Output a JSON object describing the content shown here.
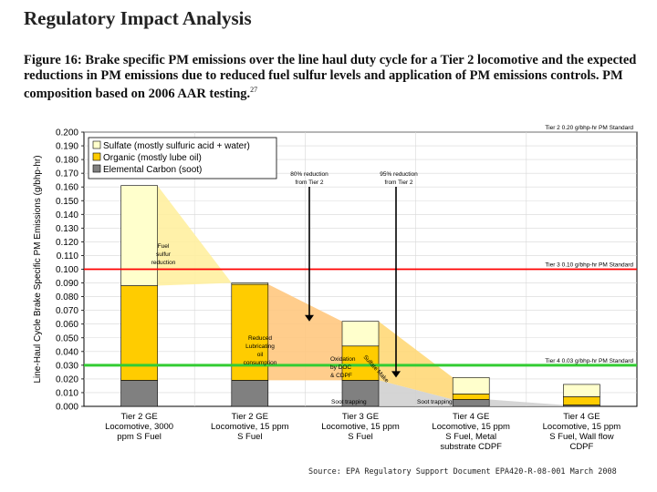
{
  "header": {
    "title": "Regulatory Impact Analysis"
  },
  "caption": {
    "text": "Figure 16:  Brake specific PM emissions over the line haul duty cycle for a Tier 2 locomotive and the expected reductions in PM emissions due to reduced fuel sulfur levels and application of  PM emissions controls.  PM composition based on 2006 AAR testing.",
    "footnote_ref": "27"
  },
  "source": "Source: EPA Regulatory Support Document EPA420-R-08-001 March 2008",
  "colors": {
    "sulfate": "#ffffcc",
    "organic": "#ffcc00",
    "soot": "#808080",
    "tier3_line": "#ff0000",
    "tier4_line": "#33cc33",
    "fuel_sulfur_wedge": "#fff0a0",
    "lube_wedge": "#ffc880",
    "oxidation_wedge": "#ffd878",
    "soot_wedge": "#d0d0d0"
  },
  "chart_data": {
    "type": "bar",
    "stacked": true,
    "ylabel": "Line-Haul Cycle Brake Specific PM Emissions (g/bhp-hr)",
    "ylim": [
      0,
      0.2
    ],
    "yticks": [
      "0.000",
      "0.010",
      "0.020",
      "0.030",
      "0.040",
      "0.050",
      "0.060",
      "0.070",
      "0.080",
      "0.090",
      "0.100",
      "0.110",
      "0.120",
      "0.130",
      "0.140",
      "0.150",
      "0.160",
      "0.170",
      "0.180",
      "0.190",
      "0.200"
    ],
    "grid": true,
    "legend_position": "top-left",
    "categories": [
      [
        "Tier 2 GE",
        "Locomotive, 3000",
        "ppm S Fuel"
      ],
      [
        "Tier 2 GE",
        "Locomotive, 15 ppm",
        "S Fuel"
      ],
      [
        "Tier 3 GE",
        "Locomotive, 15 ppm",
        "S Fuel"
      ],
      [
        "Tier 4 GE",
        "Locomotive, 15 ppm",
        "S Fuel, Metal",
        "substrate CDPF"
      ],
      [
        "Tier 4 GE",
        "Locomotive, 15 ppm",
        "S Fuel, Wall flow",
        "CDPF"
      ]
    ],
    "series": [
      {
        "name": "Elemental Carbon (soot)",
        "values": [
          0.019,
          0.019,
          0.019,
          0.005,
          0.001
        ]
      },
      {
        "name": "Organic (mostly lube oil)",
        "values": [
          0.069,
          0.07,
          0.025,
          0.004,
          0.006
        ]
      },
      {
        "name": "Sulfate (mostly sulfuric acid + water)",
        "values": [
          0.073,
          0.001,
          0.018,
          0.012,
          0.009
        ]
      }
    ],
    "standards": [
      {
        "label": "Tier 2 0.20 g/bhp-hr PM Standard",
        "value": 0.2
      },
      {
        "label": "Tier 3 0.10 g/bhp-hr PM Standard",
        "value": 0.1
      },
      {
        "label": "Tier 4 0.03 g/bhp-hr PM Standard",
        "value": 0.03
      }
    ],
    "annotations": {
      "reduction_80": [
        "80% reduction",
        "from Tier 2"
      ],
      "reduction_95": [
        "95% reduction",
        "from Tier 2"
      ],
      "fuel_sulfur": [
        "Fuel",
        "sulfur",
        "reduction"
      ],
      "reduced_lube": [
        "Reduced",
        "Lubricating",
        "oil",
        "consumption"
      ],
      "oxidation": [
        "Oxidation",
        "by DOC",
        "& CDPF"
      ],
      "sulfate_make": "Sulfate Make",
      "soot_trapping_1": "Soot trapping",
      "soot_trapping_2": "Soot trapping"
    }
  }
}
